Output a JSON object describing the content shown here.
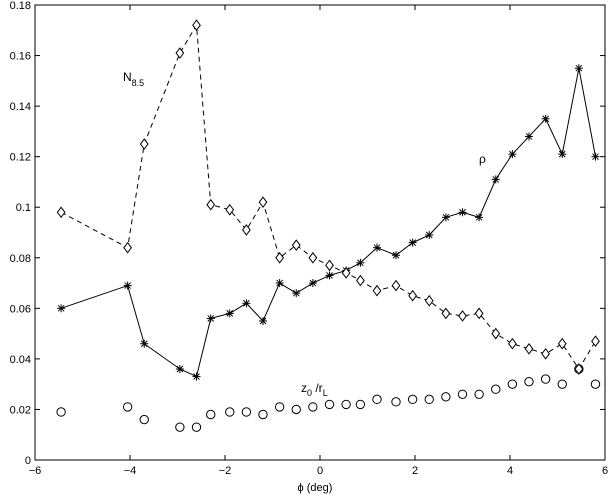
{
  "chart_data": {
    "type": "scatter",
    "title": "",
    "xlabel": "ϕ (deg)",
    "ylabel": "",
    "xlim": [
      -6,
      6
    ],
    "ylim": [
      0,
      0.18
    ],
    "xticks": [
      -6,
      -4,
      -2,
      0,
      2,
      4,
      6
    ],
    "xtick_labels": [
      "−6",
      "−4",
      "−2",
      "0",
      "2",
      "4",
      "6"
    ],
    "yticks": [
      0,
      0.02,
      0.04,
      0.06,
      0.08,
      0.1,
      0.12,
      0.14,
      0.16,
      0.18
    ],
    "ytick_labels": [
      "0",
      "0.02",
      "0.04",
      "0.06",
      "0.08",
      "0.1",
      "0.12",
      "0.14",
      "0.16",
      "0.18"
    ],
    "grid": false,
    "legend": "none",
    "series": [
      {
        "label_main": "ρ",
        "label_sub": "",
        "marker": "asterisk",
        "line": "solid",
        "color": "#000000",
        "x": [
          -5.45,
          -4.05,
          -3.7,
          -2.95,
          -2.6,
          -2.3,
          -1.9,
          -1.55,
          -1.2,
          -0.85,
          -0.5,
          -0.15,
          0.2,
          0.55,
          0.85,
          1.2,
          1.6,
          1.95,
          2.3,
          2.65,
          3.0,
          3.35,
          3.7,
          4.05,
          4.4,
          4.75,
          5.1,
          5.45,
          5.8
        ],
        "y": [
          0.06,
          0.069,
          0.046,
          0.036,
          0.033,
          0.056,
          0.058,
          0.062,
          0.055,
          0.07,
          0.066,
          0.07,
          0.073,
          0.075,
          0.078,
          0.084,
          0.081,
          0.086,
          0.089,
          0.096,
          0.098,
          0.096,
          0.111,
          0.121,
          0.128,
          0.135,
          0.121,
          0.155,
          0.12
        ]
      },
      {
        "label_main": "N",
        "label_sub": "8.5",
        "marker": "diamond",
        "line": "dashed",
        "color": "#000000",
        "x": [
          -5.45,
          -4.05,
          -3.7,
          -2.95,
          -2.6,
          -2.3,
          -1.9,
          -1.55,
          -1.2,
          -0.85,
          -0.5,
          -0.15,
          0.2,
          0.55,
          0.85,
          1.2,
          1.6,
          1.95,
          2.3,
          2.65,
          3.0,
          3.35,
          3.7,
          4.05,
          4.4,
          4.75,
          5.1,
          5.45,
          5.8
        ],
        "y": [
          0.098,
          0.084,
          0.125,
          0.161,
          0.172,
          0.101,
          0.099,
          0.091,
          0.102,
          0.08,
          0.085,
          0.08,
          0.077,
          0.074,
          0.071,
          0.067,
          0.069,
          0.065,
          0.063,
          0.058,
          0.057,
          0.058,
          0.05,
          0.046,
          0.044,
          0.042,
          0.046,
          0.036,
          0.047
        ]
      },
      {
        "label_main": "z",
        "label_sub": "0",
        "label_main2": " /r",
        "label_sub2": "L",
        "marker": "circle",
        "line": "none",
        "color": "#000000",
        "x": [
          -5.45,
          -4.05,
          -3.7,
          -2.95,
          -2.6,
          -2.3,
          -1.9,
          -1.55,
          -1.2,
          -0.85,
          -0.5,
          -0.15,
          0.2,
          0.55,
          0.85,
          1.2,
          1.6,
          1.95,
          2.3,
          2.65,
          3.0,
          3.35,
          3.7,
          4.05,
          4.4,
          4.75,
          5.1,
          5.45,
          5.8
        ],
        "y": [
          0.019,
          0.021,
          0.016,
          0.013,
          0.013,
          0.018,
          0.019,
          0.019,
          0.018,
          0.021,
          0.02,
          0.021,
          0.022,
          0.022,
          0.022,
          0.024,
          0.023,
          0.024,
          0.024,
          0.025,
          0.026,
          0.026,
          0.028,
          0.03,
          0.031,
          0.032,
          0.03,
          0.036,
          0.03
        ]
      }
    ]
  }
}
